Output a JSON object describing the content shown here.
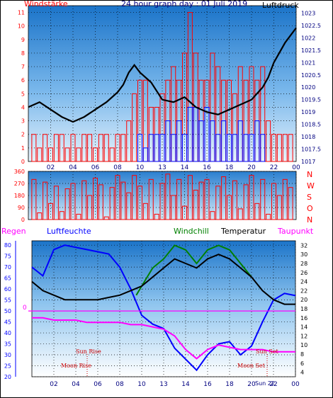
{
  "chart_data": [
    {
      "type": "line",
      "title": "24 hour graph day : 01 Juli 2019",
      "ylabel_left": "Windstärke",
      "ylabel_right": "Luftdruck",
      "x_ticks": [
        "02",
        "04",
        "06",
        "08",
        "10",
        "13",
        "14",
        "16",
        "18",
        "20",
        "22",
        "00"
      ],
      "y_left_ticks": [
        0,
        1,
        2,
        3,
        4,
        5,
        6,
        7,
        8,
        9,
        10,
        11
      ],
      "y_right_ticks": [
        "1017",
        "1017.5",
        "1018",
        "1018.5",
        "1019",
        "1019.5",
        "1020",
        "1020.5",
        "1021",
        "1021.5",
        "1022",
        "1022.5",
        "1023"
      ],
      "ylim_left": [
        0,
        11.5
      ],
      "ylim_right": [
        1017,
        1023.3
      ],
      "series": [
        {
          "kind": "bar",
          "color": "#ff0000",
          "x": [
            0.5,
            1,
            1.5,
            2,
            2.5,
            3,
            3.5,
            4,
            4.5,
            5,
            5.5,
            6,
            6.5,
            7,
            7.5,
            8,
            8.5,
            9,
            9.5,
            10,
            10.5,
            11,
            11.5,
            12,
            12.5,
            13,
            13.5,
            14,
            14.5,
            15,
            15.5,
            16,
            16.5,
            17,
            17.5,
            18,
            18.5,
            19,
            19.5,
            20,
            20.5,
            21,
            21.5,
            22,
            22.5,
            23,
            23.5
          ],
          "values": [
            2,
            1,
            2,
            1,
            2,
            2,
            1,
            2,
            1,
            2,
            2,
            1,
            2,
            2,
            1,
            2,
            2,
            3,
            5,
            6,
            6,
            4,
            4,
            5,
            6,
            7,
            6,
            8,
            11,
            8,
            6,
            6,
            8,
            7,
            6,
            6,
            5,
            7,
            6,
            7,
            6,
            7,
            3,
            2,
            2,
            2,
            2
          ]
        },
        {
          "kind": "bar",
          "color": "#0000ff",
          "x": [
            10,
            10.5,
            11,
            11.5,
            12,
            12.5,
            13,
            13.5,
            14,
            14.5,
            15,
            15.5,
            16,
            16.5,
            17,
            17.5,
            18,
            18.5,
            19,
            19.5,
            20,
            20.5,
            21
          ],
          "values": [
            2,
            1,
            2,
            2,
            2,
            3,
            2,
            3,
            2,
            4,
            4,
            3,
            4,
            3,
            2,
            3,
            2,
            2,
            3,
            2,
            2,
            3,
            2
          ]
        },
        {
          "name": "Luftdruck",
          "kind": "line",
          "color": "#000000",
          "axis": "right",
          "x": [
            0,
            1,
            2,
            3,
            4,
            5,
            6,
            7,
            8,
            8.5,
            9,
            9.5,
            10,
            10.5,
            11,
            12,
            13,
            14,
            15,
            16,
            17,
            18,
            19,
            20,
            21,
            21.5,
            22,
            23,
            24
          ],
          "values": [
            1019.2,
            1019.4,
            1019.1,
            1018.8,
            1018.6,
            1018.8,
            1019.1,
            1019.4,
            1019.8,
            1020.1,
            1020.6,
            1020.9,
            1020.6,
            1020.4,
            1020.2,
            1019.5,
            1019.4,
            1019.6,
            1019.2,
            1019.0,
            1018.9,
            1019.1,
            1019.3,
            1019.5,
            1020.0,
            1020.4,
            1021.0,
            1021.8,
            1022.4
          ]
        }
      ]
    },
    {
      "type": "scatter",
      "ylabel_right": [
        "N",
        "W",
        "S",
        "O",
        "N"
      ],
      "y_left_ticks": [
        0,
        90,
        180,
        270,
        360
      ],
      "ylim": [
        0,
        360
      ],
      "series": [
        {
          "name": "Windrichtung",
          "color": "#ff0000",
          "x": [
            0.5,
            1,
            1.5,
            2,
            2.5,
            3,
            3.5,
            4,
            4.5,
            5,
            5.5,
            6,
            6.5,
            7,
            7.5,
            8,
            8.5,
            9,
            9.5,
            10,
            10.5,
            11,
            11.5,
            12,
            12.5,
            13,
            13.5,
            14,
            14.5,
            15,
            15.5,
            16,
            16.5,
            17,
            17.5,
            18,
            18.5,
            19,
            19.5,
            20,
            20.5,
            21,
            21.5,
            22,
            22.5,
            23,
            23.5
          ],
          "values": [
            300,
            50,
            280,
            120,
            250,
            60,
            230,
            270,
            40,
            290,
            180,
            310,
            260,
            20,
            240,
            330,
            280,
            200,
            330,
            250,
            120,
            300,
            40,
            270,
            340,
            180,
            300,
            100,
            330,
            220,
            280,
            300,
            60,
            250,
            320,
            180,
            290,
            80,
            260,
            330,
            120,
            300,
            40,
            270,
            180,
            300,
            240
          ]
        }
      ]
    },
    {
      "type": "line",
      "legend": [
        "Regen",
        "Luftfeuchte",
        "Windchill",
        "Temperatur",
        "Taupunkt"
      ],
      "x_ticks": [
        "02",
        "04",
        "06",
        "08",
        "10",
        "13",
        "14",
        "16",
        "18",
        "20",
        "22",
        "00"
      ],
      "y_left_ticks": [
        20,
        25,
        30,
        35,
        40,
        45,
        50,
        55,
        60,
        65,
        70,
        75,
        80
      ],
      "y_right_ticks": [
        4,
        6,
        8,
        10,
        12,
        14,
        16,
        18,
        20,
        22,
        24,
        26,
        28,
        30,
        32
      ],
      "ylim_left": [
        20,
        82
      ],
      "ylim_right": [
        3,
        33
      ],
      "rain_value_label": "0",
      "annotations": [
        "Sun Rise",
        "Moon Rise",
        "Sun Set",
        "Moon Set",
        "Sun 22"
      ],
      "series": [
        {
          "name": "Luftfeuchte",
          "color": "#0000ff",
          "axis": "left",
          "x": [
            0,
            1,
            2,
            3,
            4,
            5,
            6,
            7,
            8,
            9,
            10,
            11,
            12,
            13,
            14,
            15,
            16,
            17,
            18,
            19,
            20,
            21,
            22,
            23,
            24
          ],
          "values": [
            70,
            66,
            78,
            80,
            79,
            78,
            77,
            76,
            70,
            60,
            48,
            44,
            42,
            33,
            28,
            23,
            30,
            35,
            36,
            30,
            34,
            45,
            55,
            58,
            57
          ]
        },
        {
          "name": "Windchill",
          "color": "#008000",
          "axis": "right",
          "x": [
            9.5,
            10,
            11,
            12,
            13,
            14,
            15,
            16,
            17,
            18,
            19,
            20
          ],
          "values": [
            21,
            23,
            27,
            29,
            32,
            31,
            28,
            31,
            32,
            31,
            28,
            25
          ]
        },
        {
          "name": "Temperatur",
          "color": "#000000",
          "axis": "right",
          "x": [
            0,
            1,
            2,
            3,
            4,
            5,
            6,
            7,
            8,
            9,
            10,
            11,
            12,
            13,
            14,
            15,
            16,
            17,
            18,
            19,
            20,
            21,
            22,
            23,
            24
          ],
          "values": [
            24,
            22,
            21,
            20,
            20,
            20,
            20,
            20.5,
            21,
            22,
            23,
            25,
            27,
            29,
            28,
            27,
            29,
            30,
            29,
            27,
            25,
            22,
            20,
            19,
            19
          ]
        },
        {
          "name": "Taupunkt",
          "color": "#ff00ff",
          "axis": "right",
          "x": [
            0,
            1,
            2,
            3,
            4,
            5,
            6,
            7,
            8,
            9,
            10,
            11,
            12,
            13,
            14,
            15,
            16,
            17,
            18,
            19,
            20,
            21,
            22,
            23,
            24
          ],
          "values": [
            16,
            16,
            15.5,
            15.5,
            15.5,
            15,
            15,
            15,
            15,
            14.5,
            14.5,
            14,
            13.5,
            12,
            9,
            7,
            9,
            10,
            9.5,
            9,
            9,
            9,
            8.5,
            8.5,
            8.5
          ]
        },
        {
          "name": "Regen",
          "color": "#ff00ff",
          "axis": "left",
          "x": [
            0,
            24
          ],
          "values": [
            50,
            50
          ]
        }
      ]
    }
  ]
}
